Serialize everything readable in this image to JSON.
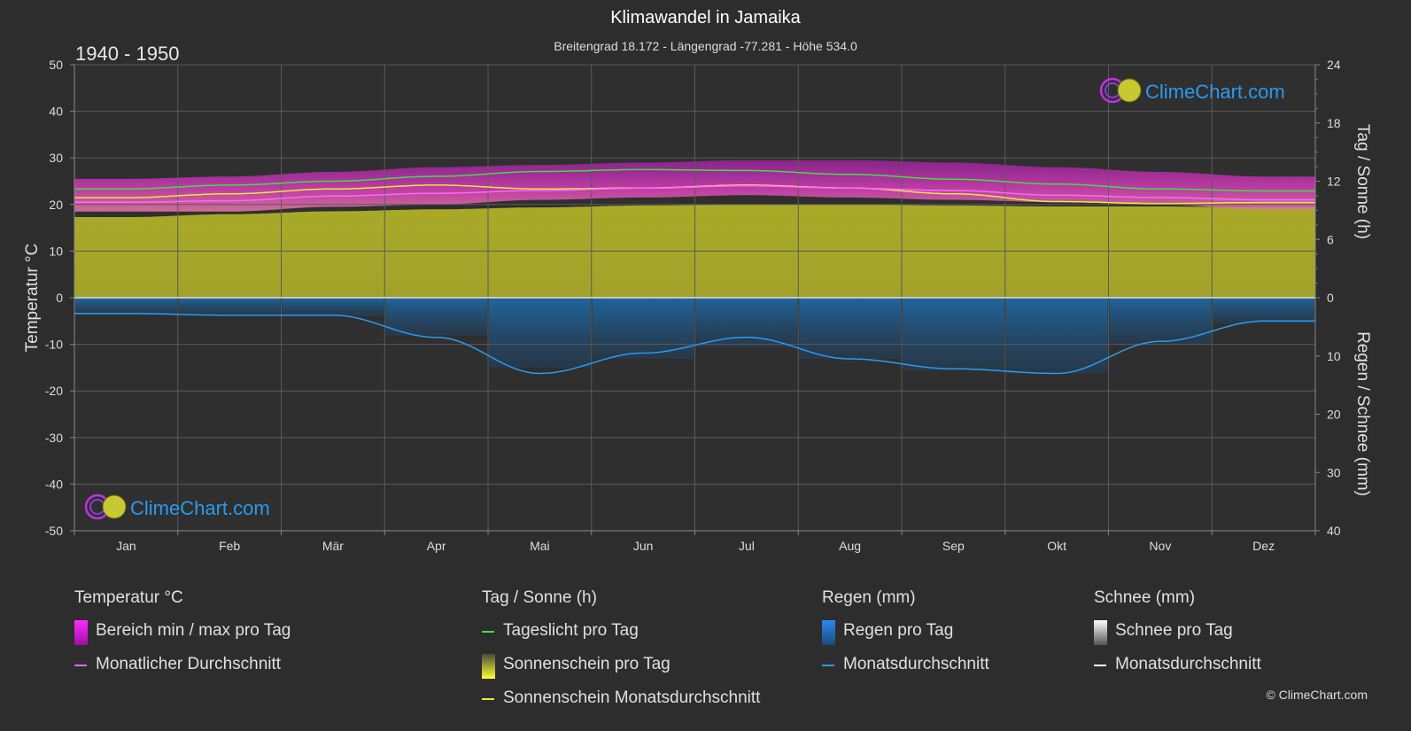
{
  "header": {
    "title": "Klimawandel in Jamaika",
    "subtitle": "Breitengrad 18.172 - Längengrad -77.281 - Höhe 534.0",
    "period": "1940 - 1950"
  },
  "logo": {
    "text": "ClimeChart.com"
  },
  "copyright": "© ClimeChart.com",
  "colors": {
    "background": "#2d2d2d",
    "temp_range": "#d21ed2",
    "temp_avg": "#ff66ff",
    "daylight": "#44dd44",
    "sunshine_fill": "#b5b52a",
    "sunshine_avg": "#e8e840",
    "rain_fill": "#1e78c8",
    "rain_avg": "#2a9af0",
    "snow": "#ffffff",
    "logo_text": "#2a9af0"
  },
  "legend": {
    "temperature": {
      "title": "Temperatur °C",
      "items": [
        {
          "label": "Bereich min / max pro Tag",
          "icon": "magenta-gradient-swatch"
        },
        {
          "label": "Monatlicher Durchschnitt",
          "icon": "pink-line"
        }
      ]
    },
    "sun": {
      "title": "Tag / Sonne (h)",
      "items": [
        {
          "label": "Tageslicht pro Tag",
          "icon": "green-line"
        },
        {
          "label": "Sonnenschein pro Tag",
          "icon": "yellow-gradient-swatch"
        },
        {
          "label": "Sonnenschein Monatsdurchschnitt",
          "icon": "yellow-line"
        }
      ]
    },
    "rain": {
      "title": "Regen (mm)",
      "items": [
        {
          "label": "Regen pro Tag",
          "icon": "blue-gradient-swatch"
        },
        {
          "label": "Monatsdurchschnitt",
          "icon": "blue-line"
        }
      ]
    },
    "snow": {
      "title": "Schnee (mm)",
      "items": [
        {
          "label": "Schnee pro Tag",
          "icon": "white-gradient-swatch"
        },
        {
          "label": "Monatsdurchschnitt",
          "icon": "white-line"
        }
      ]
    }
  },
  "chart_data": {
    "type": "area",
    "categories": [
      "Jan",
      "Feb",
      "Mär",
      "Apr",
      "Mai",
      "Jun",
      "Jul",
      "Aug",
      "Sep",
      "Okt",
      "Nov",
      "Dez"
    ],
    "y_left": {
      "label": "Temperatur °C",
      "range": [
        -50,
        50
      ],
      "ticks": [
        50,
        40,
        30,
        20,
        10,
        0,
        -10,
        -20,
        -30,
        -40,
        -50
      ]
    },
    "y_right_top": {
      "label": "Tag / Sonne (h)",
      "range": [
        0,
        24
      ],
      "ticks": [
        24,
        18,
        12,
        6,
        0
      ]
    },
    "y_right_bottom": {
      "label": "Regen / Schnee (mm)",
      "range": [
        0,
        40
      ],
      "ticks": [
        10,
        20,
        30,
        40
      ]
    },
    "grid": true,
    "series": [
      {
        "name": "Bereich min / max pro Tag",
        "kind": "band",
        "unit": "°C",
        "min": [
          18.5,
          18.5,
          19.5,
          20.0,
          21.0,
          21.5,
          22.0,
          21.5,
          21.0,
          20.5,
          20.0,
          19.0
        ],
        "max": [
          25.5,
          26.0,
          27.0,
          28.0,
          28.5,
          29.0,
          29.5,
          29.5,
          29.0,
          28.0,
          27.0,
          26.0
        ]
      },
      {
        "name": "Monatlicher Durchschnitt",
        "kind": "line",
        "unit": "°C",
        "values": [
          20.5,
          20.8,
          21.8,
          22.4,
          23.0,
          23.5,
          24.0,
          23.5,
          23.0,
          22.0,
          21.5,
          21.0
        ]
      },
      {
        "name": "Tageslicht pro Tag",
        "kind": "line",
        "unit": "h",
        "values": [
          11.2,
          11.6,
          12.0,
          12.5,
          13.0,
          13.2,
          13.1,
          12.7,
          12.2,
          11.7,
          11.2,
          11.0
        ]
      },
      {
        "name": "Sonnenschein pro Tag",
        "kind": "area",
        "unit": "h",
        "values": [
          8.3,
          8.6,
          8.9,
          9.1,
          9.3,
          9.5,
          9.6,
          9.6,
          9.5,
          9.4,
          9.4,
          9.3
        ]
      },
      {
        "name": "Sonnenschein Monatsdurchschnitt",
        "kind": "line",
        "unit": "h",
        "values": [
          10.3,
          10.7,
          11.2,
          11.6,
          11.2,
          11.3,
          11.6,
          11.3,
          10.7,
          9.9,
          9.7,
          9.8
        ]
      },
      {
        "name": "Regen pro Tag",
        "kind": "bars",
        "unit": "mm",
        "values": [
          3.0,
          3.1,
          3.2,
          6.5,
          12.0,
          10.5,
          8.5,
          10.5,
          12.5,
          13.0,
          8.0,
          4.5
        ]
      },
      {
        "name": "Monatsdurchschnitt Regen",
        "kind": "line",
        "unit": "mm",
        "values": [
          2.7,
          3.0,
          3.0,
          6.8,
          13.0,
          9.5,
          6.8,
          10.5,
          12.2,
          13.0,
          7.5,
          4.0
        ]
      }
    ]
  }
}
